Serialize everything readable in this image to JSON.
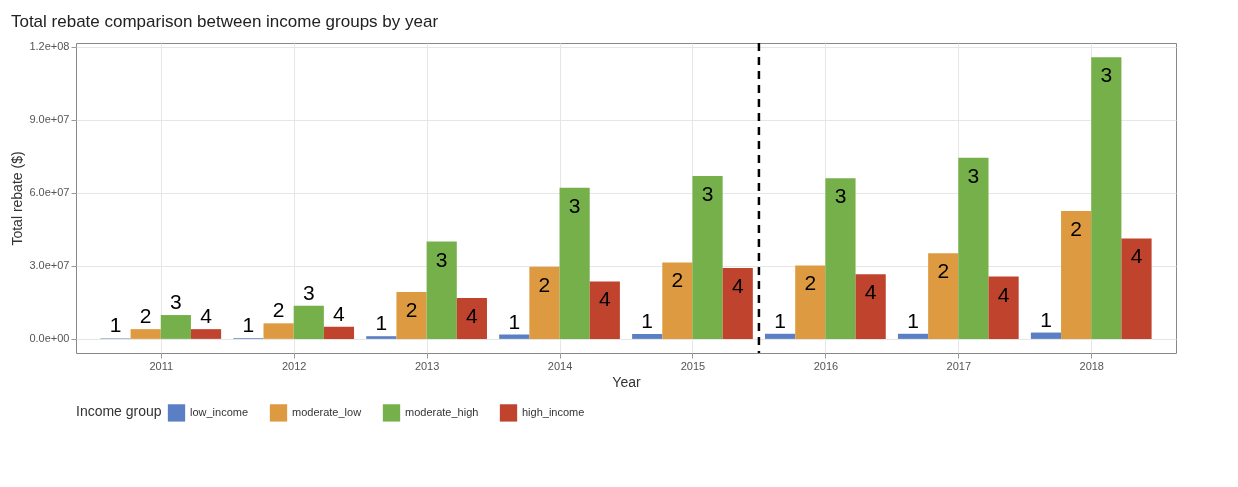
{
  "chart_data": {
    "type": "bar",
    "title": "Total rebate comparison between income groups by year",
    "xlabel": "Year",
    "ylabel": "Total rebate ($)",
    "legend_title": "Income group",
    "x": [
      2011,
      2012,
      2013,
      2014,
      2015,
      2016,
      2017,
      2018
    ],
    "xlim": [
      2010.4,
      2018.6
    ],
    "xticks": [
      2011,
      2012,
      2013,
      2014,
      2015,
      2016,
      2017,
      2018
    ],
    "ylim": [
      -5800000,
      121600000
    ],
    "yticks": [
      {
        "value": 0,
        "label": "0.0e+00"
      },
      {
        "value": 30000000,
        "label": "3.0e+07"
      },
      {
        "value": 60000000,
        "label": "6.0e+07"
      },
      {
        "value": 90000000,
        "label": "9.0e+07"
      },
      {
        "value": 120000000,
        "label": "1.2e+08"
      }
    ],
    "series": [
      {
        "name": "low_income",
        "color": "#5b7fc4",
        "values": [
          200000,
          300000,
          1100000,
          1800000,
          2000000,
          2100000,
          2100000,
          2600000
        ]
      },
      {
        "name": "moderate_low",
        "color": "#de9a40",
        "values": [
          4000000,
          6400000,
          19300000,
          29600000,
          31400000,
          30200000,
          35200000,
          52600000
        ]
      },
      {
        "name": "moderate_high",
        "color": "#76b04a",
        "values": [
          9800000,
          13600000,
          40000000,
          62100000,
          66900000,
          66000000,
          74400000,
          115700000
        ]
      },
      {
        "name": "high_income",
        "color": "#c0432e",
        "values": [
          4000000,
          5000000,
          16800000,
          23600000,
          29100000,
          26600000,
          25600000,
          41300000
        ]
      }
    ],
    "annotations": [
      {
        "text": "1",
        "x": 2011,
        "y": 200000
      },
      {
        "text": "2",
        "x": 2011,
        "y": 4000000
      },
      {
        "text": "3",
        "x": 2011,
        "y": 9800000
      },
      {
        "text": "4",
        "x": 2011,
        "y": 4000000
      },
      {
        "text": "1",
        "x": 2012,
        "y": 300000
      },
      {
        "text": "2",
        "x": 2012,
        "y": 6400000
      },
      {
        "text": "3",
        "x": 2012,
        "y": 13600000
      },
      {
        "text": "4",
        "x": 2012,
        "y": 5000000
      },
      {
        "text": "1",
        "x": 2013,
        "y": 1100000
      },
      {
        "text": "2",
        "x": 2013,
        "y": 19300000
      },
      {
        "text": "3",
        "x": 2013,
        "y": 40000000
      },
      {
        "text": "4",
        "x": 2013,
        "y": 16800000
      },
      {
        "text": "1",
        "x": 2014,
        "y": 1800000
      },
      {
        "text": "2",
        "x": 2014,
        "y": 29600000
      },
      {
        "text": "3",
        "x": 2014,
        "y": 62100000
      },
      {
        "text": "4",
        "x": 2014,
        "y": 23600000
      },
      {
        "text": "1",
        "x": 2015,
        "y": 2000000
      },
      {
        "text": "2",
        "x": 2015,
        "y": 31400000
      },
      {
        "text": "3",
        "x": 2015,
        "y": 66900000
      },
      {
        "text": "4",
        "x": 2015,
        "y": 29100000
      },
      {
        "text": "1",
        "x": 2016,
        "y": 2100000
      },
      {
        "text": "2",
        "x": 2016,
        "y": 30200000
      },
      {
        "text": "3",
        "x": 2016,
        "y": 66000000
      },
      {
        "text": "4",
        "x": 2016,
        "y": 26600000
      },
      {
        "text": "1",
        "x": 2017,
        "y": 2100000
      },
      {
        "text": "2",
        "x": 2017,
        "y": 35200000
      },
      {
        "text": "3",
        "x": 2017,
        "y": 74400000
      },
      {
        "text": "4",
        "x": 2017,
        "y": 25600000
      },
      {
        "text": "1",
        "x": 2018,
        "y": 2600000
      },
      {
        "text": "2",
        "x": 2018,
        "y": 52600000
      },
      {
        "text": "3",
        "x": 2018,
        "y": 115700000
      },
      {
        "text": "4",
        "x": 2018,
        "y": 41300000
      }
    ],
    "ref_lines": [
      {
        "axis": "x",
        "value": 2015.5,
        "line_style": "dashed",
        "color": "#000000"
      }
    ],
    "grid": true,
    "legend": "bottom"
  }
}
